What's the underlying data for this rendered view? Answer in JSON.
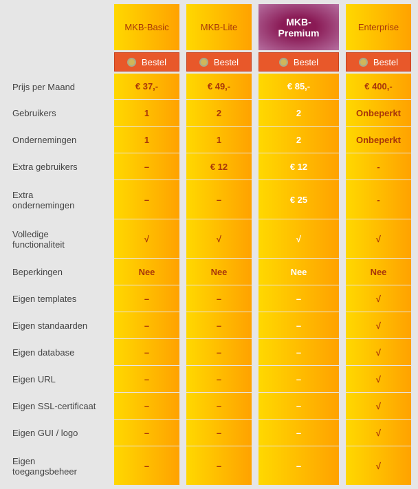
{
  "plans": [
    {
      "name": "MKB-Basic",
      "button": "Bestel"
    },
    {
      "name": "MKB-Lite",
      "button": "Bestel"
    },
    {
      "name": "MKB-\nPremium",
      "button": "Bestel"
    },
    {
      "name": "Enterprise",
      "button": "Bestel"
    }
  ],
  "rows": [
    {
      "label": "Prijs per Maand",
      "values": [
        "€ 37,-",
        "€ 49,-",
        "€ 85,-",
        "€ 400,-"
      ]
    },
    {
      "label": "Gebruikers",
      "values": [
        "1",
        "2",
        "2",
        "Onbeperkt"
      ]
    },
    {
      "label": "Ondernemingen",
      "values": [
        "1",
        "1",
        "2",
        "Onbeperkt"
      ]
    },
    {
      "label": "Extra gebruikers",
      "values": [
        "–",
        "€ 12",
        "€ 12",
        "-"
      ]
    },
    {
      "label": "Extra\nondernemingen",
      "values": [
        "–",
        "–",
        "€ 25",
        "-"
      ]
    },
    {
      "label": "Volledige\nfunctionaliteit",
      "values": [
        "√",
        "√",
        "√",
        "√"
      ]
    },
    {
      "label": "Beperkingen",
      "values": [
        "Nee",
        "Nee",
        "Nee",
        "Nee"
      ]
    },
    {
      "label": "Eigen templates",
      "values": [
        "–",
        "–",
        "–",
        "√"
      ]
    },
    {
      "label": "Eigen standaarden",
      "values": [
        "–",
        "–",
        "–",
        "√"
      ]
    },
    {
      "label": "Eigen database",
      "values": [
        "–",
        "–",
        "–",
        "√"
      ]
    },
    {
      "label": "Eigen URL",
      "values": [
        "–",
        "–",
        "–",
        "√"
      ]
    },
    {
      "label": "Eigen SSL-certificaat",
      "values": [
        "–",
        "–",
        "–",
        "√"
      ]
    },
    {
      "label": "Eigen GUI / logo",
      "values": [
        "–",
        "–",
        "–",
        "√"
      ]
    },
    {
      "label": "Eigen\ntoegangsbeheer",
      "values": [
        "–",
        "–",
        "–",
        "√"
      ]
    }
  ]
}
